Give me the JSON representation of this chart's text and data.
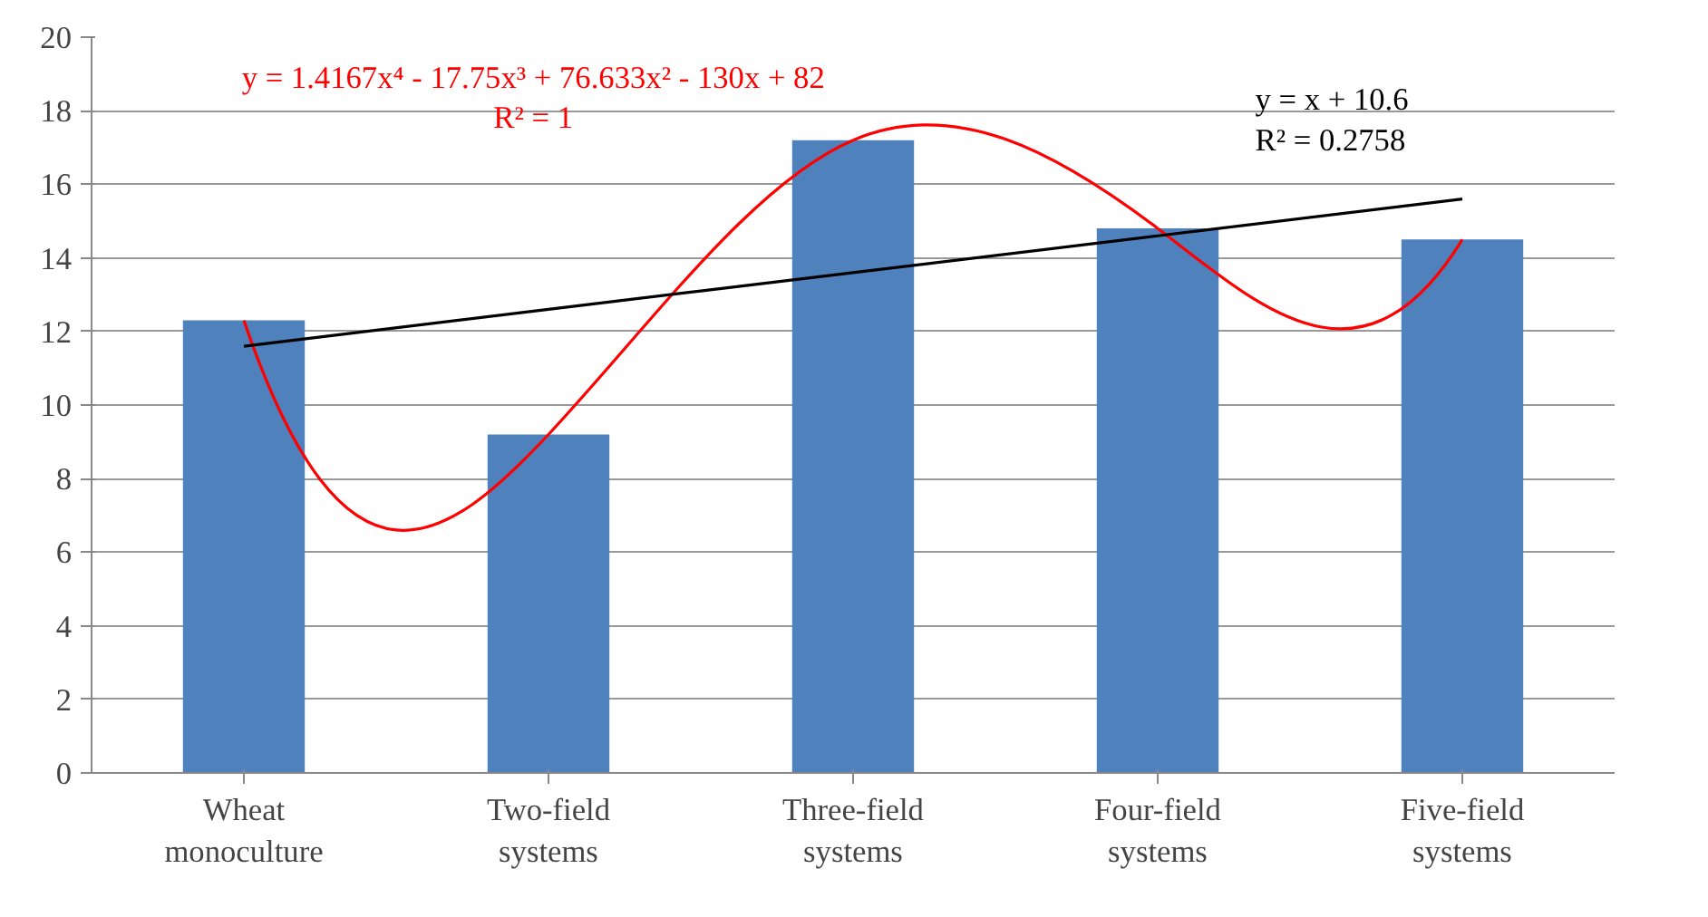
{
  "chart_data": {
    "type": "bar",
    "categories": [
      "Wheat monoculture",
      "Two-field systems",
      "Three-field systems",
      "Four-field systems",
      "Five-field systems"
    ],
    "series": [
      {
        "color": "#4f81bd",
        "values": [
          12.3,
          9.2,
          17.2,
          14.8,
          14.5
        ]
      },
      {
        "type": "line",
        "color": "#ff0000",
        "values": [
          12.3,
          9.2,
          17.2,
          14.8,
          14.5
        ]
      },
      {
        "type": "line",
        "color": "#000000",
        "values": [
          11.6,
          12.6,
          13.6,
          14.6,
          15.6
        ]
      }
    ],
    "annotations": [
      "y = 1.4167x⁴ - 17.75x³ + 76.633x² - 130x + 82",
      "R² = 1",
      "y = x + 10.6",
      "R² = 0.2758"
    ],
    "ylim": [
      0,
      20
    ],
    "yticks": [
      0,
      2,
      4,
      6,
      8,
      10,
      12,
      14,
      16,
      18,
      20
    ],
    "grid": "y"
  }
}
